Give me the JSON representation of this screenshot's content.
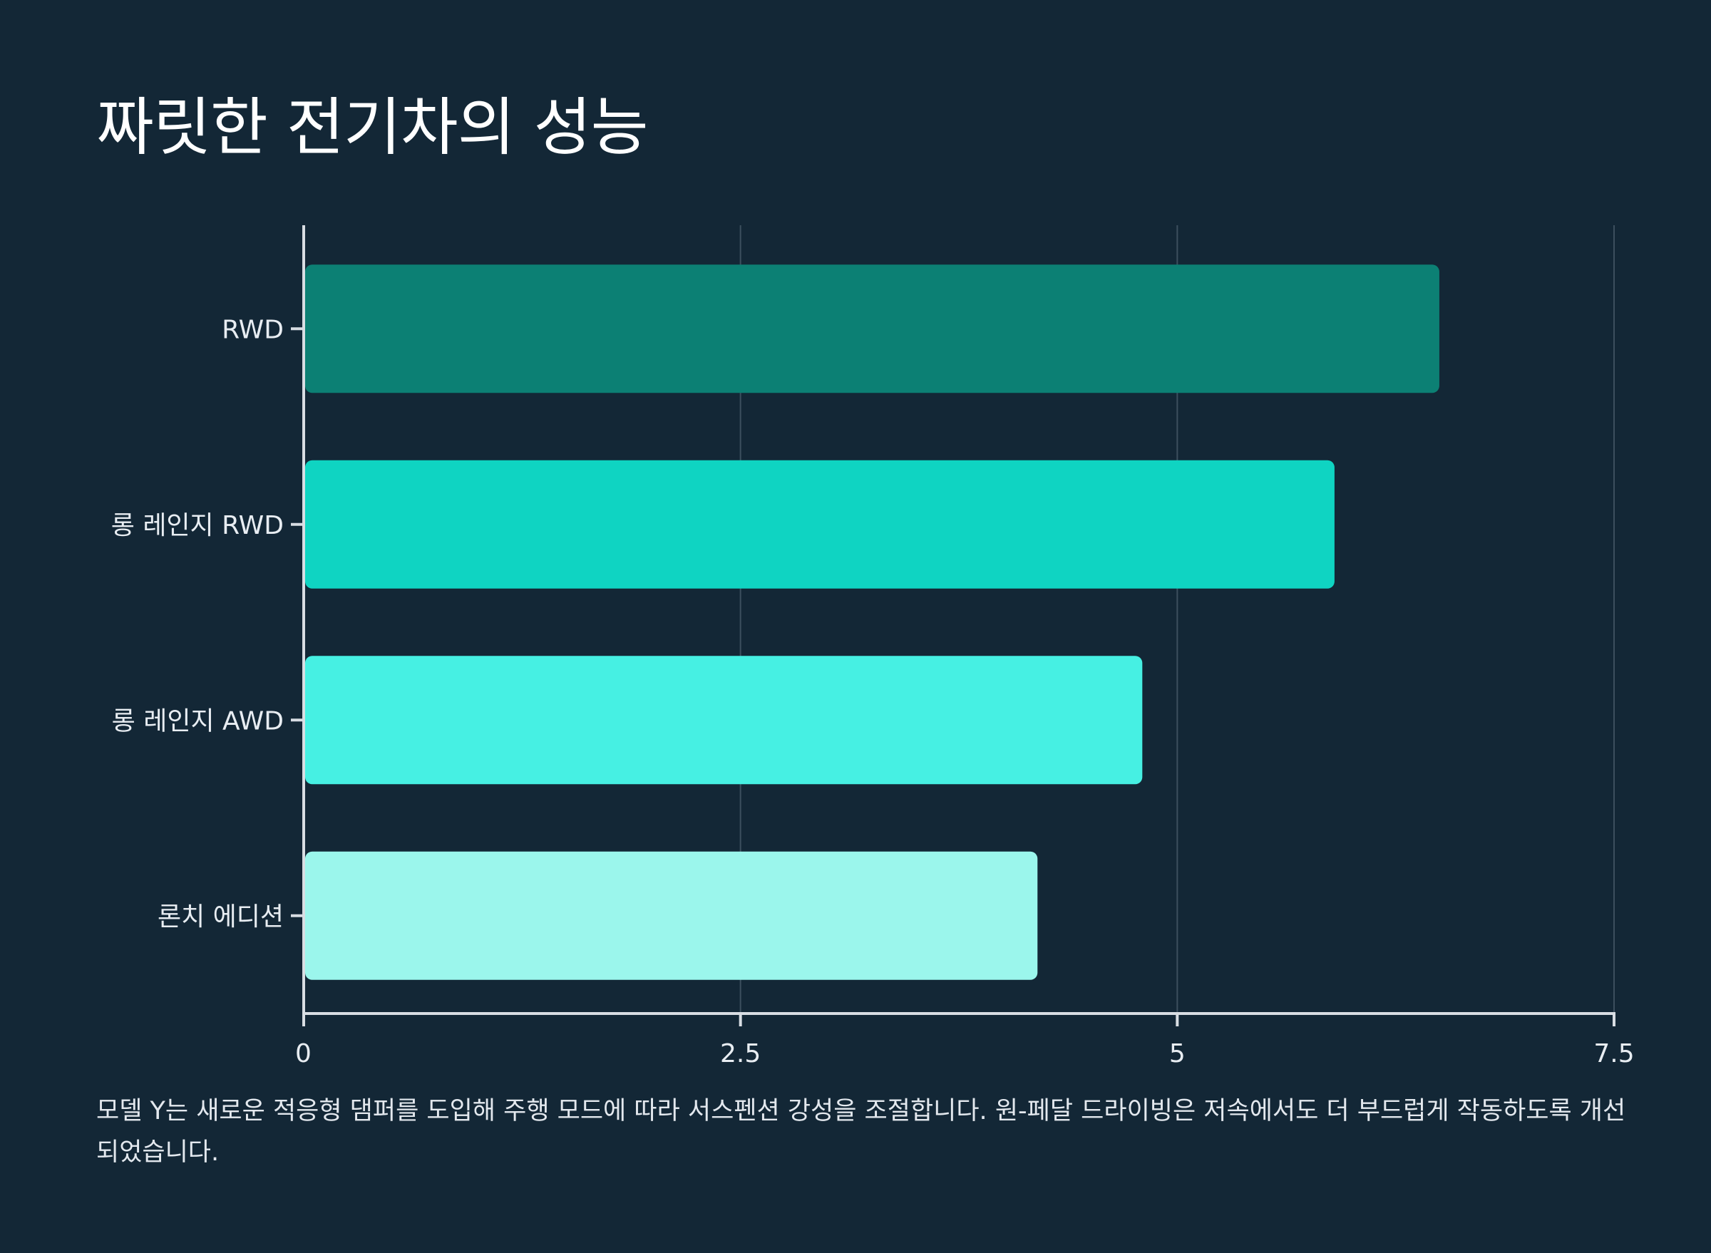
{
  "title": "짜릿한 전기차의 성능",
  "caption": "모델 Y는 새로운 적응형 댐퍼를 도입해 주행 모드에 따라 서스펜션 강성을 조절합니다. 원-페달 드라이빙은 저속에서도 더 부드럽게 작동하도록 개선되었습니다.",
  "chart_data": {
    "type": "bar",
    "orientation": "horizontal",
    "categories": [
      "RWD",
      "롱 레인지 RWD",
      "롱 레인지 AWD",
      "론치 에디션"
    ],
    "values": [
      6.5,
      5.9,
      4.8,
      4.2
    ],
    "colors": [
      "#0c8074",
      "#0fd4c2",
      "#46f0e3",
      "#9bf6ec"
    ],
    "xlim": [
      0,
      7.5
    ],
    "xticks": [
      {
        "value": 0,
        "label": "0"
      },
      {
        "value": 2.5,
        "label": "2.5"
      },
      {
        "value": 5,
        "label": "5"
      },
      {
        "value": 7.5,
        "label": "7.5"
      }
    ],
    "grid": true,
    "xlabel": "",
    "ylabel": ""
  }
}
